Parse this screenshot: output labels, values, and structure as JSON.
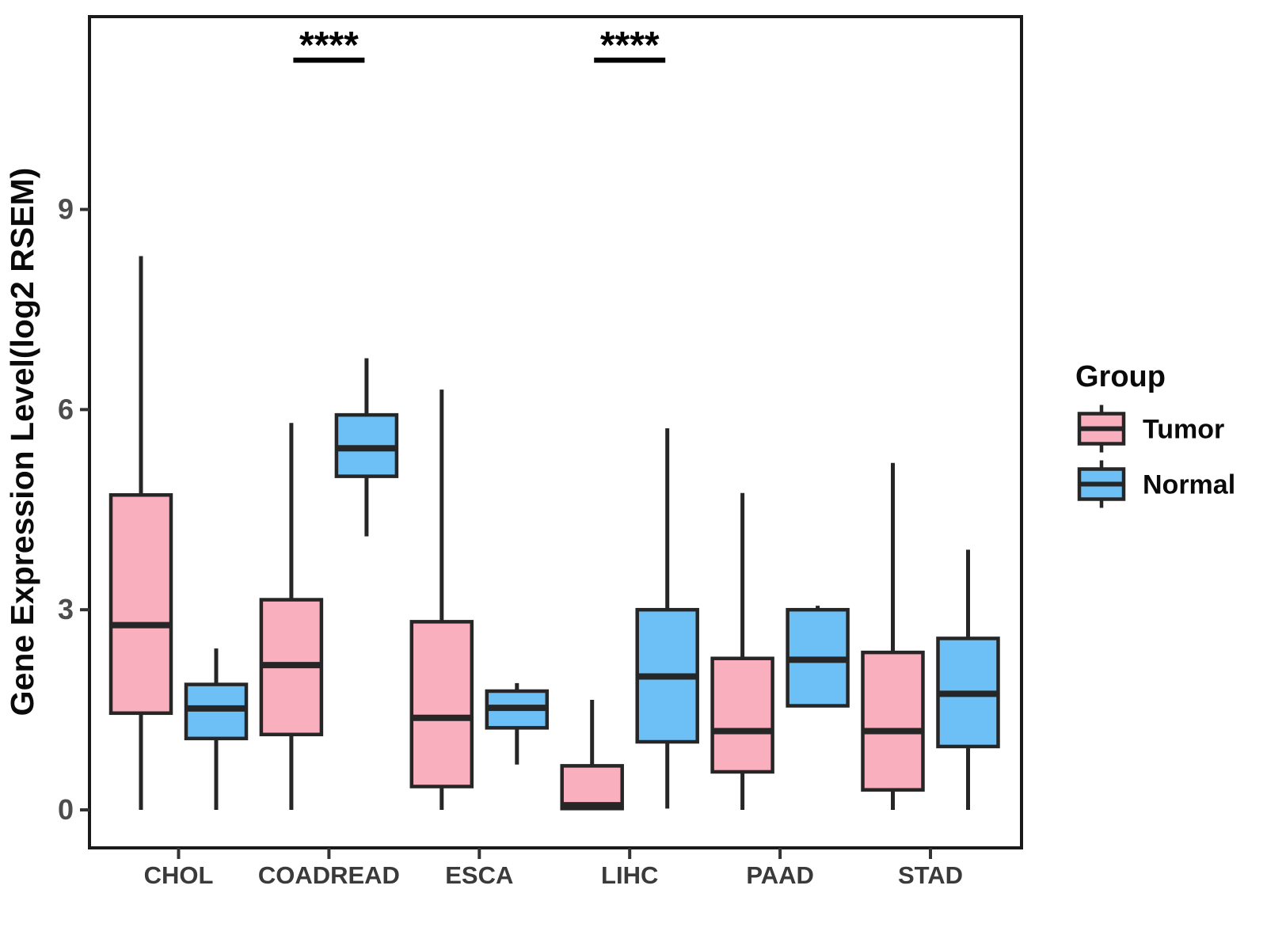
{
  "figure": {
    "y_axis": {
      "title": "Gene Expression Level(log2 RSEM)",
      "tick_labels": [
        "0",
        "3",
        "6",
        "9"
      ],
      "tick_values": [
        0,
        3,
        6,
        9
      ]
    },
    "x_axis": {
      "tick_labels": [
        "CHOL",
        "COADREAD",
        "ESCA",
        "LIHC",
        "PAAD",
        "STAD"
      ]
    },
    "legend": {
      "title": "Group",
      "entries": [
        {
          "label": "Tumor",
          "color": "#F9AFBE"
        },
        {
          "label": "Normal",
          "color": "#6DC0F5"
        }
      ]
    },
    "colors": {
      "tumor_fill": "#F9AFBE",
      "normal_fill": "#6DC0F5",
      "box_border": "#262626",
      "median_line": "#262626",
      "panel_border": "#1A1A1A",
      "axis_tick": "#333333",
      "x_label_text": "#3A3A3A",
      "y_tick_text": "#4D4D4D",
      "annotation": "#000000",
      "background": "#FFFFFF"
    }
  },
  "chart_data": {
    "type": "boxplot",
    "title": "",
    "xlabel": "",
    "ylabel": "Gene Expression Level(log2 RSEM)",
    "categories": [
      "CHOL",
      "COADREAD",
      "ESCA",
      "LIHC",
      "PAAD",
      "STAD"
    ],
    "yticks": [
      0,
      3,
      6,
      9
    ],
    "ylim": [
      -0.57,
      11.9
    ],
    "grid": false,
    "legend_position": "right-center",
    "series": [
      {
        "name": "Tumor",
        "color": "#F9AFBE",
        "boxes": [
          {
            "category": "CHOL",
            "min": 0.0,
            "q1": 1.45,
            "median": 2.77,
            "q3": 4.72,
            "max": 8.3
          },
          {
            "category": "COADREAD",
            "min": 0.0,
            "q1": 1.13,
            "median": 2.17,
            "q3": 3.15,
            "max": 5.8
          },
          {
            "category": "ESCA",
            "min": 0.0,
            "q1": 0.35,
            "median": 1.38,
            "q3": 2.82,
            "max": 6.3
          },
          {
            "category": "LIHC",
            "min": 0.02,
            "q1": 0.02,
            "median": 0.07,
            "q3": 0.66,
            "max": 1.65
          },
          {
            "category": "PAAD",
            "min": 0.0,
            "q1": 0.57,
            "median": 1.18,
            "q3": 2.27,
            "max": 4.75
          },
          {
            "category": "STAD",
            "min": 0.0,
            "q1": 0.3,
            "median": 1.18,
            "q3": 2.36,
            "max": 5.2
          }
        ]
      },
      {
        "name": "Normal",
        "color": "#6DC0F5",
        "boxes": [
          {
            "category": "CHOL",
            "min": 0.0,
            "q1": 1.07,
            "median": 1.52,
            "q3": 1.88,
            "max": 2.42
          },
          {
            "category": "COADREAD",
            "min": 4.1,
            "q1": 5.0,
            "median": 5.42,
            "q3": 5.92,
            "max": 6.77
          },
          {
            "category": "ESCA",
            "min": 0.68,
            "q1": 1.23,
            "median": 1.53,
            "q3": 1.78,
            "max": 1.9
          },
          {
            "category": "LIHC",
            "min": 0.02,
            "q1": 1.02,
            "median": 2.0,
            "q3": 3.0,
            "max": 5.72
          },
          {
            "category": "PAAD",
            "min": 1.56,
            "q1": 1.56,
            "median": 2.25,
            "q3": 3.0,
            "max": 3.06
          },
          {
            "category": "STAD",
            "min": 0.0,
            "q1": 0.95,
            "median": 1.74,
            "q3": 2.57,
            "max": 3.9
          }
        ]
      }
    ],
    "significance": [
      {
        "category": "COADREAD",
        "label": "****"
      },
      {
        "category": "LIHC",
        "label": "****"
      }
    ]
  }
}
